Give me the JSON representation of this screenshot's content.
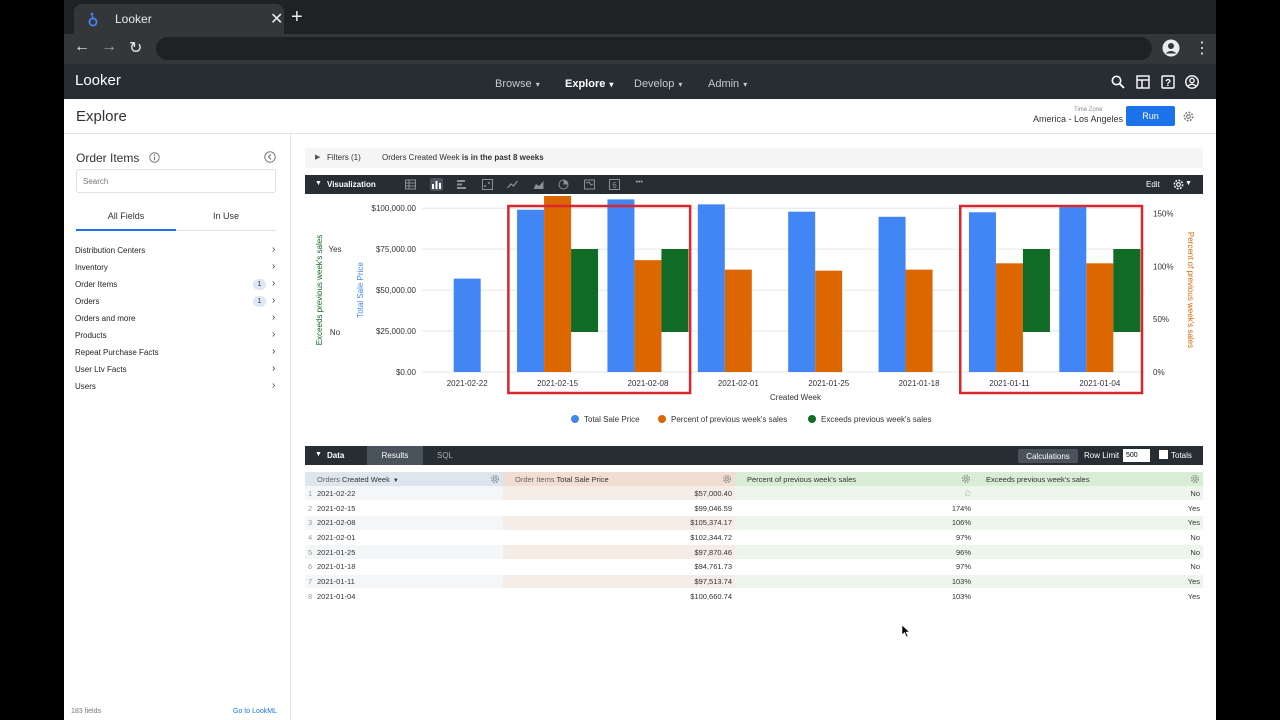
{
  "browser": {
    "tab_title": "Looker",
    "close_glyph": "✕",
    "newtab_glyph": "+",
    "back_glyph": "←",
    "forward_glyph": "→",
    "reload_glyph": "↻",
    "menu_glyph": "⋮"
  },
  "header": {
    "logo": "Looker",
    "menus": [
      {
        "label": "Browse",
        "active": false
      },
      {
        "label": "Explore",
        "active": true
      },
      {
        "label": "Develop",
        "active": false
      },
      {
        "label": "Admin",
        "active": false
      }
    ],
    "icons": [
      "search-icon",
      "dashboard-icon",
      "help-icon",
      "account-icon"
    ]
  },
  "explore": {
    "title": "Explore",
    "timezone_label": "Time Zone",
    "timezone_value": "America - Los Angeles",
    "run_label": "Run"
  },
  "picker": {
    "title": "Order Items",
    "search_placeholder": "Search",
    "tabs": [
      "All Fields",
      "In Use"
    ],
    "views": [
      {
        "name": "Distribution Centers",
        "count": ""
      },
      {
        "name": "Inventory",
        "count": ""
      },
      {
        "name": "Order Items",
        "count": "1"
      },
      {
        "name": "Orders",
        "count": "1"
      },
      {
        "name": "Orders and more",
        "count": ""
      },
      {
        "name": "Products",
        "count": ""
      },
      {
        "name": "Repeat Purchase Facts",
        "count": ""
      },
      {
        "name": "User Ltv Facts",
        "count": ""
      },
      {
        "name": "Users",
        "count": ""
      }
    ],
    "field_count": "183 fields",
    "lookml_link": "Go to LookML"
  },
  "filters": {
    "label": "Filters (1)",
    "summary_prefix": "Orders Created Week ",
    "summary_bold": "is in the past 8 weeks"
  },
  "viz": {
    "label": "Visualization",
    "edit_label": "Edit",
    "types": [
      "table-icon",
      "column-icon",
      "bar-icon",
      "scatter-icon",
      "line-icon",
      "area-icon",
      "pie-icon",
      "map-icon",
      "single-value-icon",
      "more-icon"
    ],
    "more_glyph": "•••"
  },
  "chart_data": {
    "type": "bar",
    "categories": [
      "2021-02-22",
      "2021-02-15",
      "2021-02-08",
      "2021-02-01",
      "2021-01-25",
      "2021-01-18",
      "2021-01-11",
      "2021-01-04"
    ],
    "series": [
      {
        "name": "Total Sale Price",
        "axis": "left",
        "color": "#4285f4",
        "values": [
          57000.4,
          99046.59,
          105374.17,
          102344.72,
          97870.46,
          94761.73,
          97513.74,
          100660.74
        ]
      },
      {
        "name": "Percent of previous week's sales",
        "axis": "right",
        "color": "#dc6600",
        "values": [
          null,
          174,
          106,
          97,
          96,
          97,
          103,
          103
        ]
      },
      {
        "name": "Exceeds previous week's sales",
        "axis": "categorical",
        "color": "#0f6b25",
        "values": [
          "No",
          "Yes",
          "Yes",
          "No",
          "No",
          "No",
          "Yes",
          "Yes"
        ]
      }
    ],
    "xlabel": "Created Week",
    "ylabel_left": "Total Sale Price",
    "ylabel_right": "Percent of previous week's sales",
    "ylabel_cat": "Exceeds previous week's sales",
    "ylim_left": [
      0,
      100000
    ],
    "left_ticks": [
      "$0.00",
      "$25,000.00",
      "$50,000.00",
      "$75,000.00",
      "$100,000.00"
    ],
    "right_ticks": [
      "0%",
      "50%",
      "100%",
      "150%"
    ],
    "cat_ticks": [
      "Yes",
      "No"
    ],
    "ylim_right": [
      0,
      150
    ],
    "grid": true,
    "legend": "bottom",
    "highlights": [
      [
        1,
        2
      ],
      [
        6,
        7
      ]
    ],
    "highlight_color": "#d9262f"
  },
  "data": {
    "label": "Data",
    "tabs": [
      "Results",
      "SQL"
    ],
    "calc_label": "Calculations",
    "row_limit_label": "Row Limit",
    "row_limit": "500",
    "totals_label": "Totals",
    "columns": [
      {
        "prefix": "Orders ",
        "bold": "Created Week",
        "sort": "▼"
      },
      {
        "prefix": "Order Items ",
        "bold": "Total Sale Price",
        "sort": ""
      },
      {
        "prefix": "",
        "bold": "Percent of previous week's sales",
        "sort": ""
      },
      {
        "prefix": "",
        "bold": "Exceeds previous week's sales",
        "sort": ""
      }
    ],
    "rows": [
      [
        "1",
        "2021-02-22",
        "$57,000.40",
        "∅",
        "No"
      ],
      [
        "2",
        "2021-02-15",
        "$99,046.59",
        "174%",
        "Yes"
      ],
      [
        "3",
        "2021-02-08",
        "$105,374.17",
        "106%",
        "Yes"
      ],
      [
        "4",
        "2021-02-01",
        "$102,344.72",
        "97%",
        "No"
      ],
      [
        "5",
        "2021-01-25",
        "$97,870.46",
        "96%",
        "No"
      ],
      [
        "6",
        "2021-01-18",
        "$94,761.73",
        "97%",
        "No"
      ],
      [
        "7",
        "2021-01-11",
        "$97,513.74",
        "103%",
        "Yes"
      ],
      [
        "8",
        "2021-01-04",
        "$100,660.74",
        "103%",
        "Yes"
      ]
    ]
  }
}
